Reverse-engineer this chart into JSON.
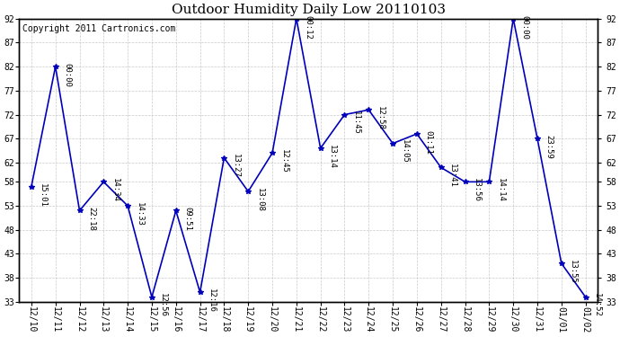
{
  "title": "Outdoor Humidity Daily Low 20110103",
  "copyright": "Copyright 2011 Cartronics.com",
  "x_labels": [
    "12/10",
    "12/11",
    "12/12",
    "12/13",
    "12/14",
    "12/15",
    "12/16",
    "12/17",
    "12/18",
    "12/19",
    "12/20",
    "12/21",
    "12/22",
    "12/23",
    "12/24",
    "12/25",
    "12/26",
    "12/27",
    "12/28",
    "12/29",
    "12/30",
    "12/31",
    "01/01",
    "01/02"
  ],
  "y_values": [
    57,
    82,
    52,
    58,
    53,
    34,
    52,
    35,
    63,
    56,
    64,
    92,
    65,
    72,
    73,
    66,
    68,
    61,
    58,
    58,
    92,
    67,
    41,
    34
  ],
  "time_labels": [
    "15:01",
    "00:00",
    "22:18",
    "14:34",
    "14:33",
    "12:56",
    "09:51",
    "12:16",
    "13:27",
    "13:08",
    "12:45",
    "00:12",
    "13:14",
    "11:45",
    "12:58",
    "14:05",
    "01:11",
    "13:41",
    "13:56",
    "14:14",
    "00:00",
    "23:59",
    "13:55",
    "14:52"
  ],
  "line_color": "#0000BB",
  "marker_color": "#0000BB",
  "bg_color": "#ffffff",
  "plot_bg_color": "#ffffff",
  "grid_color": "#BBBBBB",
  "ylim": [
    33,
    92
  ],
  "yticks": [
    33,
    38,
    43,
    48,
    53,
    58,
    62,
    67,
    72,
    77,
    82,
    87,
    92
  ],
  "title_fontsize": 11,
  "tick_fontsize": 7,
  "label_fontsize": 6.5,
  "copyright_fontsize": 7
}
